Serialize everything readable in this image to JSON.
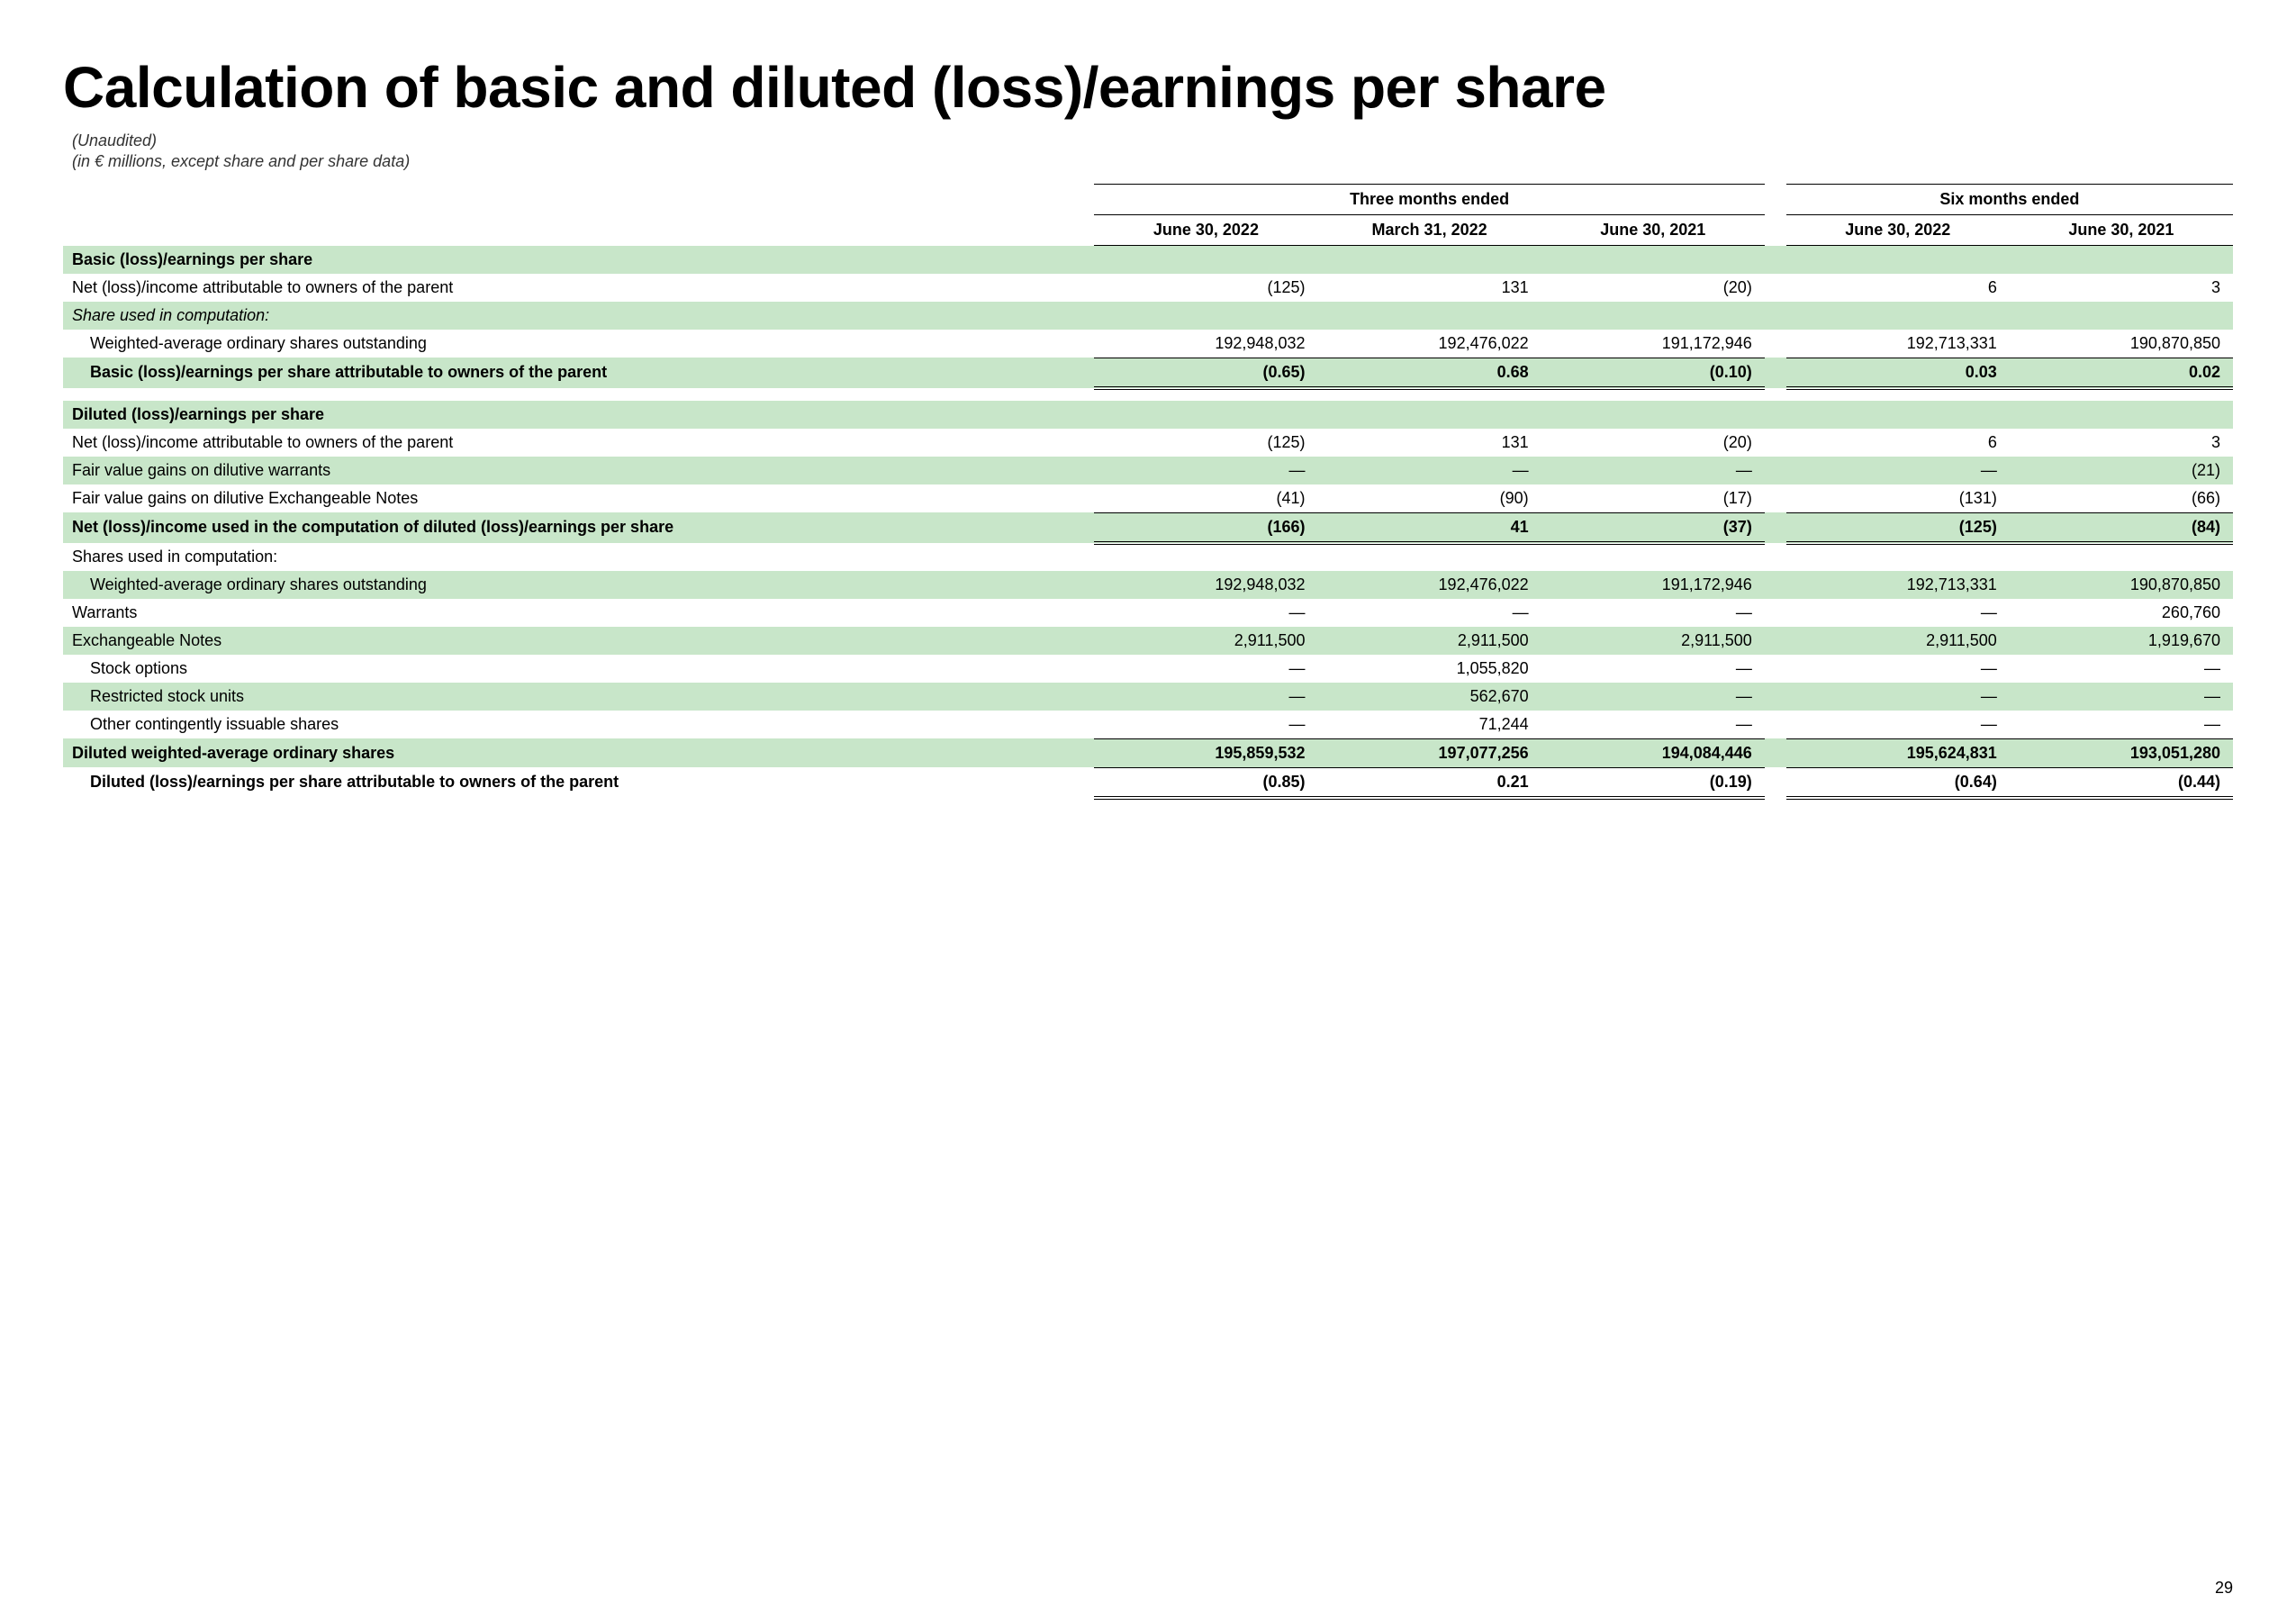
{
  "title": "Calculation of basic and diluted (loss)/earnings per share",
  "subtitle1": "(Unaudited)",
  "subtitle2": "(in € millions, except share and per share data)",
  "page_number": "29",
  "group_headers": {
    "three": "Three months ended",
    "six": "Six months ended"
  },
  "columns": [
    "June 30, 2022",
    "March 31, 2022",
    "June 30, 2021",
    "June 30, 2022",
    "June 30, 2021"
  ],
  "rows": [
    {
      "id": "r0",
      "label": "Basic (loss)/earnings per share",
      "vals": [
        "",
        "",
        "",
        "",
        ""
      ],
      "classes": "shade bold-row"
    },
    {
      "id": "r1",
      "label": "Net (loss)/income attributable to owners of the parent",
      "vals": [
        "(125)",
        "131",
        "(20)",
        "6",
        "3"
      ],
      "classes": ""
    },
    {
      "id": "r2",
      "label": "Share used in computation:",
      "vals": [
        "",
        "",
        "",
        "",
        ""
      ],
      "classes": "shade italic"
    },
    {
      "id": "r3",
      "label": "Weighted-average ordinary shares outstanding",
      "vals": [
        "192,948,032",
        "192,476,022",
        "191,172,946",
        "192,713,331",
        "190,870,850"
      ],
      "classes": "indent1 ul-single"
    },
    {
      "id": "r4",
      "label": "Basic (loss)/earnings per share attributable to owners of the parent",
      "vals": [
        "(0.65)",
        "0.68",
        "(0.10)",
        "0.03",
        "0.02"
      ],
      "classes": "shade bold-row indent1 ul-double"
    },
    {
      "id": "sp1",
      "label": "",
      "vals": [
        "",
        "",
        "",
        "",
        ""
      ],
      "classes": "spacer"
    },
    {
      "id": "r5",
      "label": "Diluted (loss)/earnings per share",
      "vals": [
        "",
        "",
        "",
        "",
        ""
      ],
      "classes": "shade bold-row"
    },
    {
      "id": "r6",
      "label": "Net (loss)/income attributable to owners of the parent",
      "vals": [
        "(125)",
        "131",
        "(20)",
        "6",
        "3"
      ],
      "classes": ""
    },
    {
      "id": "r7",
      "label": "Fair value gains on dilutive warrants",
      "vals": [
        "—",
        "—",
        "—",
        "—",
        "(21)"
      ],
      "classes": "shade"
    },
    {
      "id": "r8",
      "label": "Fair value gains on dilutive Exchangeable Notes",
      "vals": [
        "(41)",
        "(90)",
        "(17)",
        "(131)",
        "(66)"
      ],
      "classes": "ul-single"
    },
    {
      "id": "r9",
      "label": "Net (loss)/income used in the computation of diluted (loss)/earnings per share",
      "vals": [
        "(166)",
        "41",
        "(37)",
        "(125)",
        "(84)"
      ],
      "classes": "shade bold-row ul-double"
    },
    {
      "id": "r10",
      "label": "Shares used in computation:",
      "vals": [
        "",
        "",
        "",
        "",
        ""
      ],
      "classes": ""
    },
    {
      "id": "r11",
      "label": "Weighted-average ordinary shares outstanding",
      "vals": [
        "192,948,032",
        "192,476,022",
        "191,172,946",
        "192,713,331",
        "190,870,850"
      ],
      "classes": "shade indent1"
    },
    {
      "id": "r12",
      "label": "Warrants",
      "vals": [
        "—",
        "—",
        "—",
        "—",
        "260,760"
      ],
      "classes": ""
    },
    {
      "id": "r13",
      "label": "Exchangeable Notes",
      "vals": [
        "2,911,500",
        "2,911,500",
        "2,911,500",
        "2,911,500",
        "1,919,670"
      ],
      "classes": "shade"
    },
    {
      "id": "r14",
      "label": "Stock options",
      "vals": [
        "—",
        "1,055,820",
        "—",
        "—",
        "—"
      ],
      "classes": "indent1"
    },
    {
      "id": "r15",
      "label": "Restricted stock units",
      "vals": [
        "—",
        "562,670",
        "—",
        "—",
        "—"
      ],
      "classes": "shade indent1"
    },
    {
      "id": "r16",
      "label": "Other contingently issuable shares",
      "vals": [
        "—",
        "71,244",
        "—",
        "—",
        "—"
      ],
      "classes": "indent1 ul-single"
    },
    {
      "id": "r17",
      "label": "Diluted weighted-average ordinary shares",
      "vals": [
        "195,859,532",
        "197,077,256",
        "194,084,446",
        "195,624,831",
        "193,051,280"
      ],
      "classes": "shade bold-row ul-single"
    },
    {
      "id": "r18",
      "label": "Diluted (loss)/earnings per share attributable to owners of the parent",
      "vals": [
        "(0.85)",
        "0.21",
        "(0.19)",
        "(0.64)",
        "(0.44)"
      ],
      "classes": "bold-row indent1 ul-double"
    }
  ]
}
